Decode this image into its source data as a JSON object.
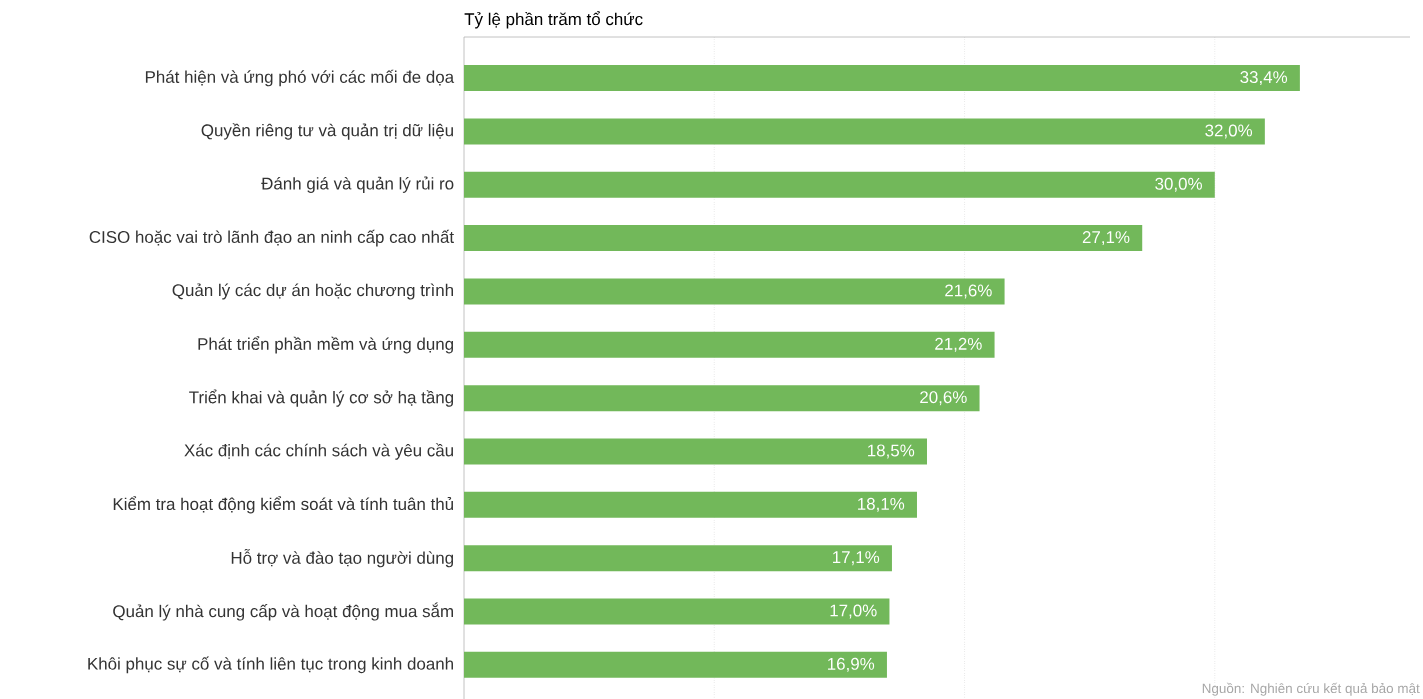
{
  "chart_data": {
    "type": "bar",
    "orientation": "horizontal",
    "title": "Tỷ lệ phần trăm tổ chức",
    "categories": [
      "Phát hiện và ứng phó với các mối đe dọa",
      "Quyền riêng tư và quản trị dữ liệu",
      "Đánh giá và quản lý rủi ro",
      "CISO hoặc vai trò lãnh đạo an ninh cấp cao nhất",
      "Quản lý các dự án hoặc chương trình",
      "Phát triển phần mềm và ứng dụng",
      "Triển khai và quản lý cơ sở hạ tầng",
      "Xác định các chính sách và yêu cầu",
      "Kiểm tra hoạt động kiểm soát và tính tuân thủ",
      "Hỗ trợ và đào tạo người dùng",
      "Quản lý nhà cung cấp và hoạt động mua sắm",
      "Khôi phục sự cố và tính liên tục trong kinh doanh"
    ],
    "values": [
      33.4,
      32.0,
      30.0,
      27.1,
      21.6,
      21.2,
      20.6,
      18.5,
      18.1,
      17.1,
      17.0,
      16.9
    ],
    "value_labels": [
      "33,4%",
      "32,0%",
      "30,0%",
      "27,1%",
      "21,6%",
      "21,2%",
      "20,6%",
      "18,5%",
      "18,1%",
      "17,1%",
      "17,0%",
      "16,9%"
    ],
    "color": "#72b85a",
    "xlim": [
      0,
      37.8
    ],
    "xticks": [
      {
        "value": 10,
        "label": null
      },
      {
        "value": 20,
        "label": null
      },
      {
        "value": 30,
        "label": null
      }
    ],
    "grid": "x",
    "tick_labels": "y",
    "annotations": [
      "Nguồn: Nghiên cứu kết quả bảo mật"
    ]
  }
}
